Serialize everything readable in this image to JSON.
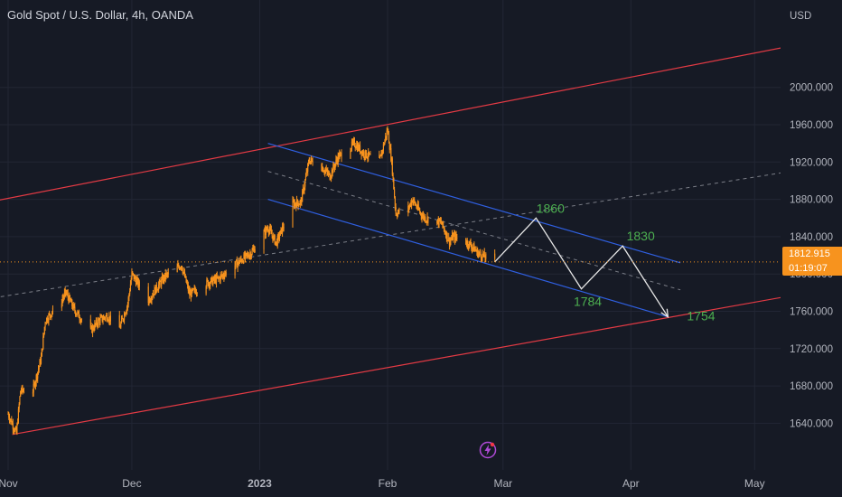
{
  "header": {
    "symbol_title": "Gold Spot / U.S. Dollar, 4h, OANDA"
  },
  "colors": {
    "background": "#161a25",
    "grid": "#222634",
    "axis_text": "#b2b5be",
    "candle": "#f7931e",
    "channel_red": "#e23a44",
    "channel_blue": "#2f5fe0",
    "projection": "#e6e6e6",
    "label_green": "#4caf50",
    "price_line": "#f7931e"
  },
  "chart_data": {
    "type": "candlestick",
    "title": "Gold Spot / U.S. Dollar, 4h, OANDA",
    "currency": "USD",
    "ylim": [
      1620,
      2050
    ],
    "y_ticks": [
      "1640.000",
      "1680.000",
      "1720.000",
      "1760.000",
      "1800.000",
      "1840.000",
      "1880.000",
      "1920.000",
      "1960.000",
      "2000.000"
    ],
    "x_ticks": [
      "Nov",
      "Dec",
      "2023",
      "Feb",
      "Mar",
      "Apr",
      "May"
    ],
    "grid": true,
    "last_price": "1812.915",
    "countdown": "01:19:07",
    "price_path": [
      [
        "2022-11-01",
        1650
      ],
      [
        "2022-11-03",
        1629
      ],
      [
        "2022-11-04",
        1675
      ],
      [
        "2022-11-07",
        1675
      ],
      [
        "2022-11-09",
        1710
      ],
      [
        "2022-11-10",
        1750
      ],
      [
        "2022-11-14",
        1772
      ],
      [
        "2022-11-15",
        1780
      ],
      [
        "2022-11-17",
        1762
      ],
      [
        "2022-11-21",
        1739
      ],
      [
        "2022-11-23",
        1750
      ],
      [
        "2022-11-25",
        1755
      ],
      [
        "2022-11-28",
        1742
      ],
      [
        "2022-11-30",
        1768
      ],
      [
        "2022-12-01",
        1800
      ],
      [
        "2022-12-05",
        1772
      ],
      [
        "2022-12-07",
        1785
      ],
      [
        "2022-12-09",
        1797
      ],
      [
        "2022-12-13",
        1810
      ],
      [
        "2022-12-15",
        1778
      ],
      [
        "2022-12-19",
        1790
      ],
      [
        "2022-12-22",
        1795
      ],
      [
        "2022-12-27",
        1813
      ],
      [
        "2022-12-30",
        1823
      ],
      [
        "2023-01-03",
        1850
      ],
      [
        "2023-01-05",
        1833
      ],
      [
        "2023-01-09",
        1875
      ],
      [
        "2023-01-11",
        1877
      ],
      [
        "2023-01-13",
        1922
      ],
      [
        "2023-01-16",
        1915
      ],
      [
        "2023-01-18",
        1905
      ],
      [
        "2023-01-20",
        1925
      ],
      [
        "2023-01-24",
        1940
      ],
      [
        "2023-01-26",
        1930
      ],
      [
        "2023-01-30",
        1920
      ],
      [
        "2023-02-01",
        1955
      ],
      [
        "2023-02-02",
        1920
      ],
      [
        "2023-02-03",
        1865
      ],
      [
        "2023-02-06",
        1870
      ],
      [
        "2023-02-07",
        1880
      ],
      [
        "2023-02-09",
        1865
      ],
      [
        "2023-02-10",
        1860
      ],
      [
        "2023-02-14",
        1855
      ],
      [
        "2023-02-16",
        1835
      ],
      [
        "2023-02-17",
        1840
      ],
      [
        "2023-02-21",
        1832
      ],
      [
        "2023-02-23",
        1822
      ],
      [
        "2023-02-27",
        1812.915
      ]
    ],
    "projection": [
      {
        "date": "2023-02-27",
        "price": 1812.915,
        "label": ""
      },
      {
        "date": "2023-03-09",
        "price": 1860,
        "label": "1860"
      },
      {
        "date": "2023-03-20",
        "price": 1784,
        "label": "1784"
      },
      {
        "date": "2023-03-30",
        "price": 1830,
        "label": "1830"
      },
      {
        "date": "2023-04-10",
        "price": 1754,
        "label": "1754"
      }
    ],
    "channels": {
      "red_upper": [
        [
          "2022-10-25",
          1875
        ],
        [
          "2023-05-14",
          2048
        ]
      ],
      "red_lower": [
        [
          "2022-11-02",
          1628
        ],
        [
          "2023-05-14",
          1780
        ]
      ],
      "blue_upper": [
        [
          "2023-01-03",
          1940
        ],
        [
          "2023-04-13",
          1812
        ]
      ],
      "blue_lower": [
        [
          "2023-01-03",
          1880
        ],
        [
          "2023-04-10",
          1754
        ]
      ],
      "mid_dashed": [
        [
          "2022-10-25",
          1772
        ],
        [
          "2023-05-14",
          1913
        ]
      ],
      "blue_mid_dashed": [
        [
          "2023-01-03",
          1910
        ],
        [
          "2023-04-13",
          1783
        ]
      ]
    }
  }
}
